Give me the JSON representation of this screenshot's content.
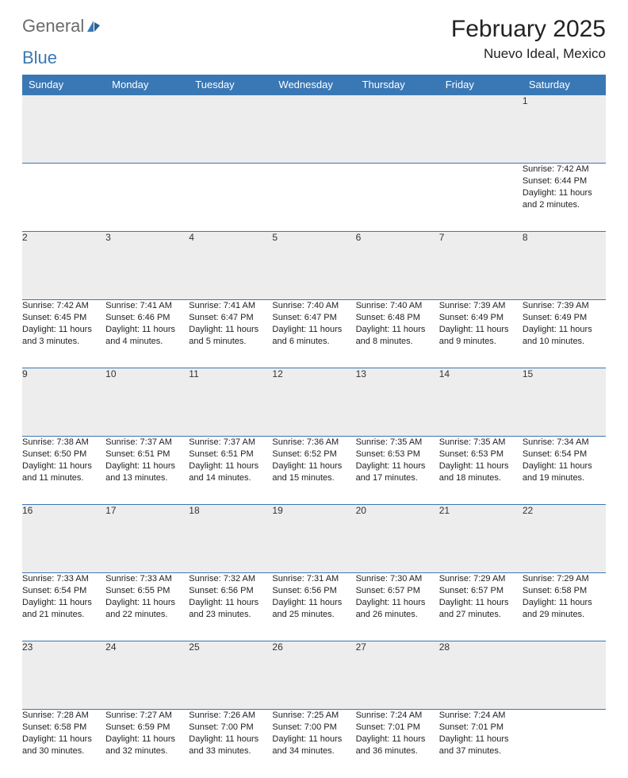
{
  "brand": {
    "part1": "General",
    "part2": "Blue"
  },
  "title": "February 2025",
  "location": "Nuevo Ideal, Mexico",
  "header_row": [
    "Sunday",
    "Monday",
    "Tuesday",
    "Wednesday",
    "Thursday",
    "Friday",
    "Saturday"
  ],
  "header_bg": "#3a78b5",
  "daynum_bg": "#ededed",
  "border_color": "#3a78b5",
  "weeks": [
    [
      null,
      null,
      null,
      null,
      null,
      null,
      {
        "n": "1",
        "sunrise": "7:42 AM",
        "sunset": "6:44 PM",
        "daylight": "11 hours and 2 minutes."
      }
    ],
    [
      {
        "n": "2",
        "sunrise": "7:42 AM",
        "sunset": "6:45 PM",
        "daylight": "11 hours and 3 minutes."
      },
      {
        "n": "3",
        "sunrise": "7:41 AM",
        "sunset": "6:46 PM",
        "daylight": "11 hours and 4 minutes."
      },
      {
        "n": "4",
        "sunrise": "7:41 AM",
        "sunset": "6:47 PM",
        "daylight": "11 hours and 5 minutes."
      },
      {
        "n": "5",
        "sunrise": "7:40 AM",
        "sunset": "6:47 PM",
        "daylight": "11 hours and 6 minutes."
      },
      {
        "n": "6",
        "sunrise": "7:40 AM",
        "sunset": "6:48 PM",
        "daylight": "11 hours and 8 minutes."
      },
      {
        "n": "7",
        "sunrise": "7:39 AM",
        "sunset": "6:49 PM",
        "daylight": "11 hours and 9 minutes."
      },
      {
        "n": "8",
        "sunrise": "7:39 AM",
        "sunset": "6:49 PM",
        "daylight": "11 hours and 10 minutes."
      }
    ],
    [
      {
        "n": "9",
        "sunrise": "7:38 AM",
        "sunset": "6:50 PM",
        "daylight": "11 hours and 11 minutes."
      },
      {
        "n": "10",
        "sunrise": "7:37 AM",
        "sunset": "6:51 PM",
        "daylight": "11 hours and 13 minutes."
      },
      {
        "n": "11",
        "sunrise": "7:37 AM",
        "sunset": "6:51 PM",
        "daylight": "11 hours and 14 minutes."
      },
      {
        "n": "12",
        "sunrise": "7:36 AM",
        "sunset": "6:52 PM",
        "daylight": "11 hours and 15 minutes."
      },
      {
        "n": "13",
        "sunrise": "7:35 AM",
        "sunset": "6:53 PM",
        "daylight": "11 hours and 17 minutes."
      },
      {
        "n": "14",
        "sunrise": "7:35 AM",
        "sunset": "6:53 PM",
        "daylight": "11 hours and 18 minutes."
      },
      {
        "n": "15",
        "sunrise": "7:34 AM",
        "sunset": "6:54 PM",
        "daylight": "11 hours and 19 minutes."
      }
    ],
    [
      {
        "n": "16",
        "sunrise": "7:33 AM",
        "sunset": "6:54 PM",
        "daylight": "11 hours and 21 minutes."
      },
      {
        "n": "17",
        "sunrise": "7:33 AM",
        "sunset": "6:55 PM",
        "daylight": "11 hours and 22 minutes."
      },
      {
        "n": "18",
        "sunrise": "7:32 AM",
        "sunset": "6:56 PM",
        "daylight": "11 hours and 23 minutes."
      },
      {
        "n": "19",
        "sunrise": "7:31 AM",
        "sunset": "6:56 PM",
        "daylight": "11 hours and 25 minutes."
      },
      {
        "n": "20",
        "sunrise": "7:30 AM",
        "sunset": "6:57 PM",
        "daylight": "11 hours and 26 minutes."
      },
      {
        "n": "21",
        "sunrise": "7:29 AM",
        "sunset": "6:57 PM",
        "daylight": "11 hours and 27 minutes."
      },
      {
        "n": "22",
        "sunrise": "7:29 AM",
        "sunset": "6:58 PM",
        "daylight": "11 hours and 29 minutes."
      }
    ],
    [
      {
        "n": "23",
        "sunrise": "7:28 AM",
        "sunset": "6:58 PM",
        "daylight": "11 hours and 30 minutes."
      },
      {
        "n": "24",
        "sunrise": "7:27 AM",
        "sunset": "6:59 PM",
        "daylight": "11 hours and 32 minutes."
      },
      {
        "n": "25",
        "sunrise": "7:26 AM",
        "sunset": "7:00 PM",
        "daylight": "11 hours and 33 minutes."
      },
      {
        "n": "26",
        "sunrise": "7:25 AM",
        "sunset": "7:00 PM",
        "daylight": "11 hours and 34 minutes."
      },
      {
        "n": "27",
        "sunrise": "7:24 AM",
        "sunset": "7:01 PM",
        "daylight": "11 hours and 36 minutes."
      },
      {
        "n": "28",
        "sunrise": "7:24 AM",
        "sunset": "7:01 PM",
        "daylight": "11 hours and 37 minutes."
      },
      null
    ]
  ],
  "labels": {
    "sunrise": "Sunrise: ",
    "sunset": "Sunset: ",
    "daylight": "Daylight: "
  }
}
